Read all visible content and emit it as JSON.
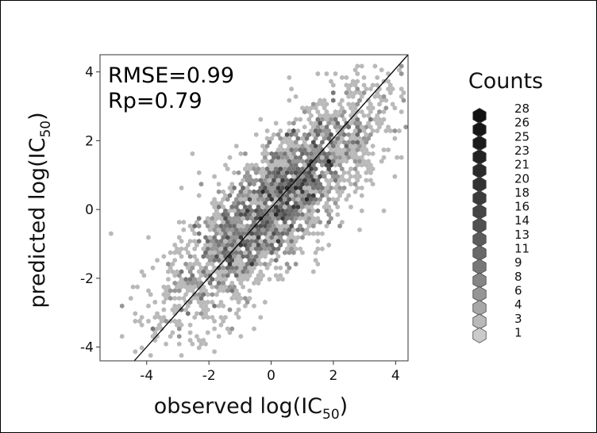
{
  "chart_data": {
    "type": "hexbin",
    "title": "",
    "xlabel": {
      "prefix": "observed log(IC",
      "sub": "50",
      "suffix": ")"
    },
    "ylabel": {
      "prefix": "predicted log(IC",
      "sub": "50",
      "suffix": ")"
    },
    "xlim": [
      -5.5,
      4.4
    ],
    "ylim": [
      -4.4,
      4.5
    ],
    "xticks": [
      -4,
      -2,
      0,
      2,
      4
    ],
    "yticks": [
      -4,
      -2,
      0,
      2,
      4
    ],
    "grid": false,
    "annotations": [
      "RMSE=0.99",
      "Rp=0.79"
    ],
    "identity_line": {
      "x1": -4.4,
      "y1": -4.4,
      "x2": 4.4,
      "y2": 4.5
    },
    "legend": {
      "title": "Counts",
      "placement": "right",
      "levels": [
        28,
        26,
        25,
        23,
        21,
        20,
        18,
        16,
        14,
        13,
        11,
        9,
        8,
        6,
        4,
        3,
        1
      ],
      "colors": [
        "#111111",
        "#161616",
        "#1c1c1c",
        "#222222",
        "#2a2a2a",
        "#323232",
        "#3b3b3b",
        "#454545",
        "#505050",
        "#5c5c5c",
        "#696969",
        "#777777",
        "#868686",
        "#969696",
        "#a7a7a7",
        "#b9b9b9",
        "#cbcbcb"
      ]
    },
    "density_model": {
      "n_points": 2600,
      "x_mean": 0.2,
      "x_sd": 1.75,
      "slope": 0.79,
      "intercept": 0.05,
      "residual_sd": 0.98,
      "seed": 11
    }
  }
}
